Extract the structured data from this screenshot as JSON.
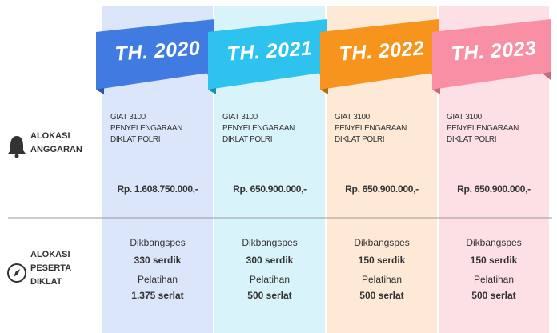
{
  "row_labels": [
    {
      "lines": [
        "ALOKASI",
        "ANGGARAN"
      ]
    },
    {
      "lines": [
        "ALOKASI",
        "PESERTA",
        "DIKLAT"
      ]
    }
  ],
  "columns": [
    {
      "year": "TH. 2020",
      "giat": [
        "GIAT 3100",
        "PENYELENGARAAN",
        "DIKLAT POLRI"
      ],
      "amount": "Rp. 1.608.750.000,-",
      "dik_label": "Dikbangspes",
      "dik_value": "330 serdik",
      "pel_label": "Pelatihan",
      "pel_value": "1.375 serlat"
    },
    {
      "year": "TH. 2021",
      "giat": [
        "GIAT 3100",
        "PENYELENGARAAN",
        "DIKLAT POLRI"
      ],
      "amount": "Rp. 650.900.000,-",
      "dik_label": "Dikbangspes",
      "dik_value": "300 serdik",
      "pel_label": "Pelatihan",
      "pel_value": "500 serlat"
    },
    {
      "year": "TH. 2022",
      "giat": [
        "GIAT 3100",
        "PENYELENGARAAN",
        "DIKLAT POLRI"
      ],
      "amount": "Rp. 650.900.000,-",
      "dik_label": "Dikbangspes",
      "dik_value": "150 serdik",
      "pel_label": "Pelatihan",
      "pel_value": "500 serlat"
    },
    {
      "year": "TH. 2023",
      "giat": [
        "GIAT 3100",
        "PENYELENGARAAN",
        "DIKLAT POLRI"
      ],
      "amount": "Rp. 650.900.000,-",
      "dik_label": "Dikbangspes",
      "dik_value": "150 serdik",
      "pel_label": "Pelatihan",
      "pel_value": "500 serlat"
    }
  ]
}
